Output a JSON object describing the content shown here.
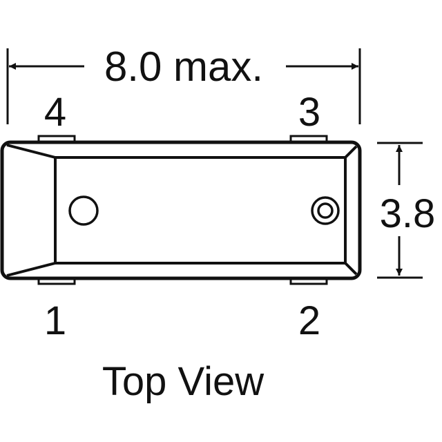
{
  "dimensions": {
    "width_label": "8.0 max.",
    "height_label": "3.8"
  },
  "pins": {
    "pin1": "1",
    "pin2": "2",
    "pin3": "3",
    "pin4": "4"
  },
  "caption": "Top View",
  "colors": {
    "ink": "#111111",
    "background": "#ffffff"
  }
}
